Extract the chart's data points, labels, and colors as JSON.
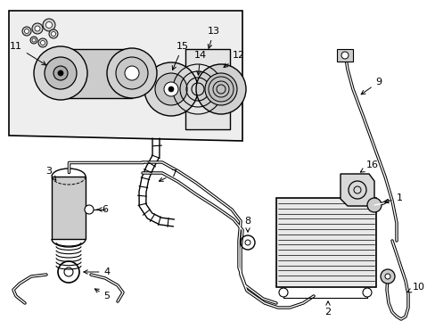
{
  "bg_color": "#ffffff",
  "lc": "#000000",
  "gray_light": "#e8e8e8",
  "gray_med": "#cccccc",
  "gray_dark": "#999999",
  "inset_bg": "#eeeeee",
  "figsize": [
    4.89,
    3.6
  ],
  "dpi": 100
}
